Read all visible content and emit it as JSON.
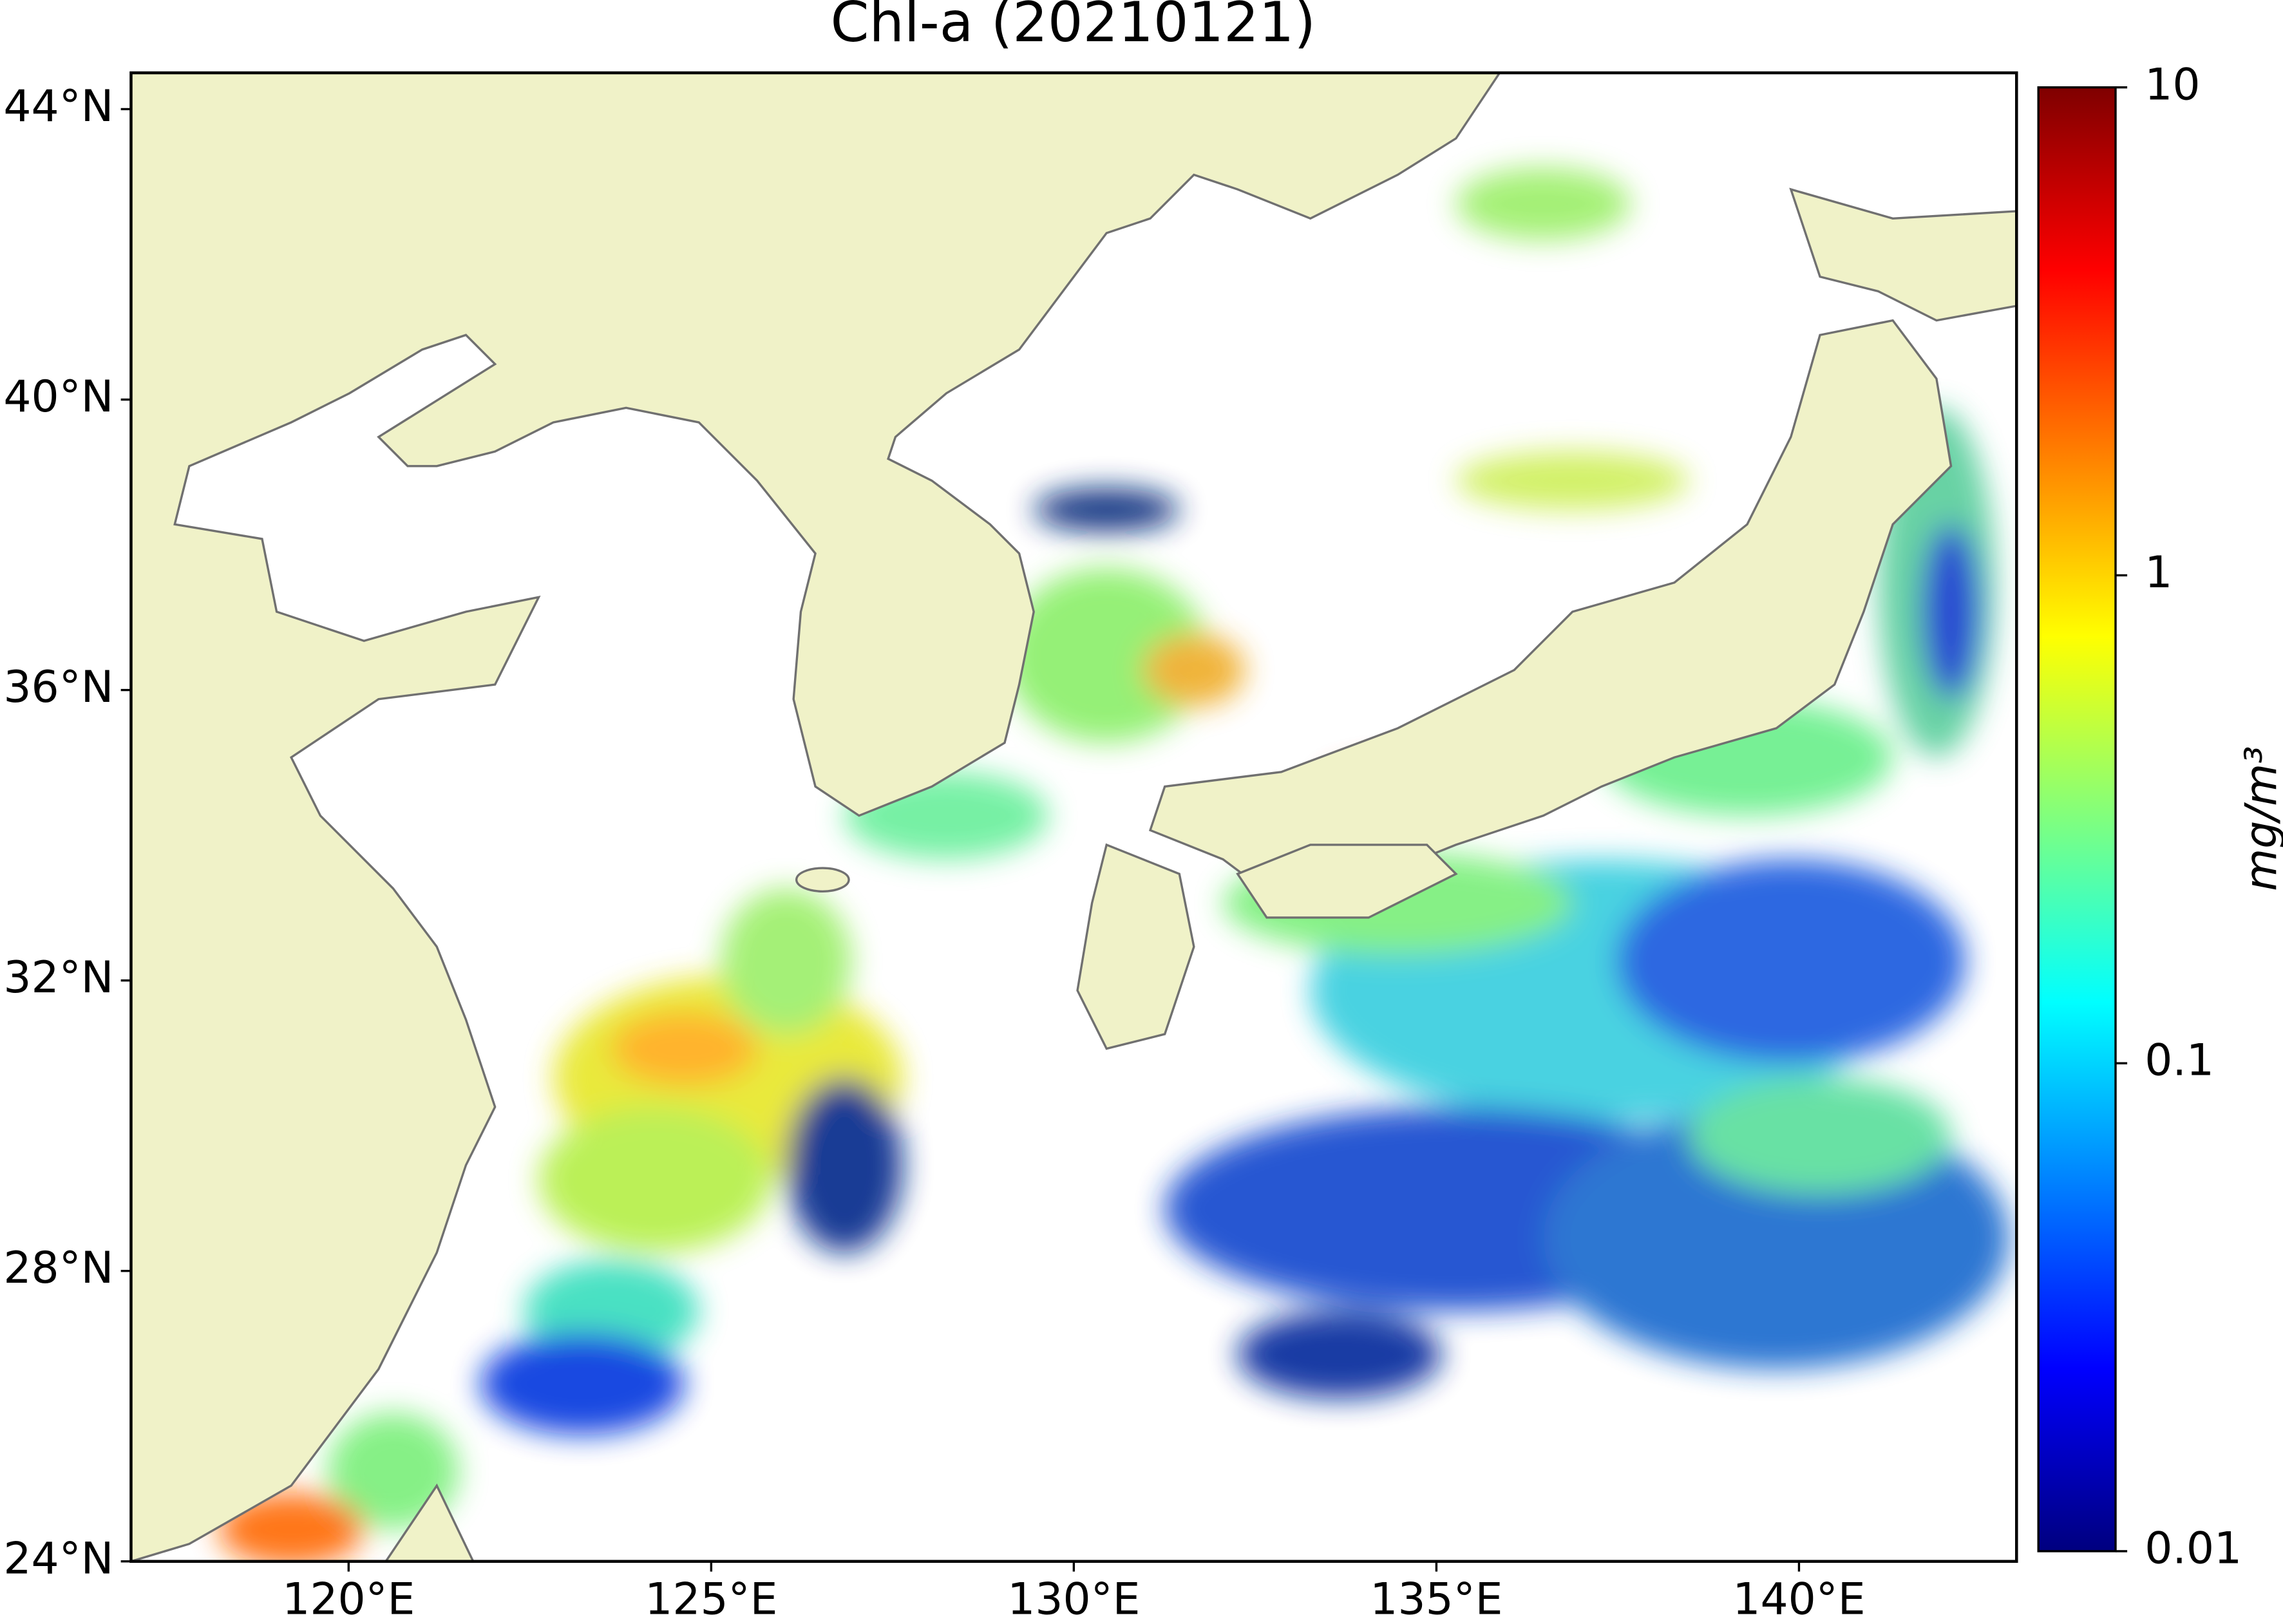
{
  "chart_data": {
    "type": "map",
    "title": "Chl-a (20210121)",
    "xlim": [
      117,
      143
    ],
    "ylim": [
      24,
      44.5
    ],
    "xticks": [
      {
        "value": 120,
        "label": "120°E"
      },
      {
        "value": 125,
        "label": "125°E"
      },
      {
        "value": 130,
        "label": "130°E"
      },
      {
        "value": 135,
        "label": "135°E"
      },
      {
        "value": 140,
        "label": "140°E"
      }
    ],
    "yticks": [
      {
        "value": 24,
        "label": "24°N"
      },
      {
        "value": 28,
        "label": "28°N"
      },
      {
        "value": 32,
        "label": "32°N"
      },
      {
        "value": 36,
        "label": "36°N"
      },
      {
        "value": 40,
        "label": "40°N"
      },
      {
        "value": 44,
        "label": "44°N"
      }
    ],
    "colorbar": {
      "label": "mg/m³",
      "scale": "log",
      "colormap": "jet",
      "lim": [
        0.01,
        10
      ],
      "ticks": [
        0.01,
        0.1,
        1,
        10
      ]
    }
  }
}
